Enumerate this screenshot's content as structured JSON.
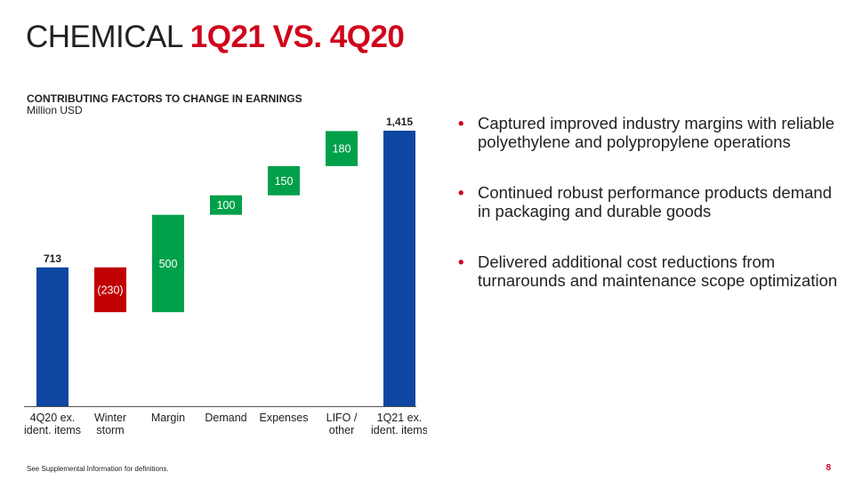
{
  "title": {
    "part1": "CHEMICAL ",
    "part2": "1Q21 VS. 4Q20"
  },
  "colors": {
    "total": "#0d47a1",
    "increase": "#00a04b",
    "decrease": "#c00000",
    "accent": "#d0021b"
  },
  "chart_data": {
    "type": "waterfall",
    "title": "CONTRIBUTING FACTORS TO CHANGE IN EARNINGS",
    "ylabel": "Million USD",
    "categories": [
      "4Q20 ex. ident. items",
      "Winter storm",
      "Margin",
      "Demand",
      "Expenses",
      "LIFO / other",
      "1Q21 ex. ident. items"
    ],
    "category_lines": [
      [
        "4Q20 ex.",
        "ident. items"
      ],
      [
        "Winter",
        "storm"
      ],
      [
        "Margin",
        ""
      ],
      [
        "Demand",
        ""
      ],
      [
        "Expenses",
        ""
      ],
      [
        "LIFO /",
        "other"
      ],
      [
        "1Q21 ex.",
        "ident. items"
      ]
    ],
    "values": [
      713,
      -230,
      500,
      100,
      150,
      180,
      1415
    ],
    "kinds": [
      "total",
      "decrease",
      "increase",
      "increase",
      "increase",
      "increase",
      "total"
    ],
    "labels": [
      "713",
      "(230)",
      "500",
      "100",
      "150",
      "180",
      "1,415"
    ],
    "ylim": [
      0,
      1415
    ]
  },
  "bullets": [
    "Captured improved industry margins with reliable polyethylene and polypropylene operations",
    "Continued robust performance products demand in packaging and durable goods",
    "Delivered additional cost reductions from turnarounds and maintenance scope optimization"
  ],
  "bullet_symbol": "•",
  "footnote": "See Supplemental Information for definitions.",
  "page_number": "8"
}
